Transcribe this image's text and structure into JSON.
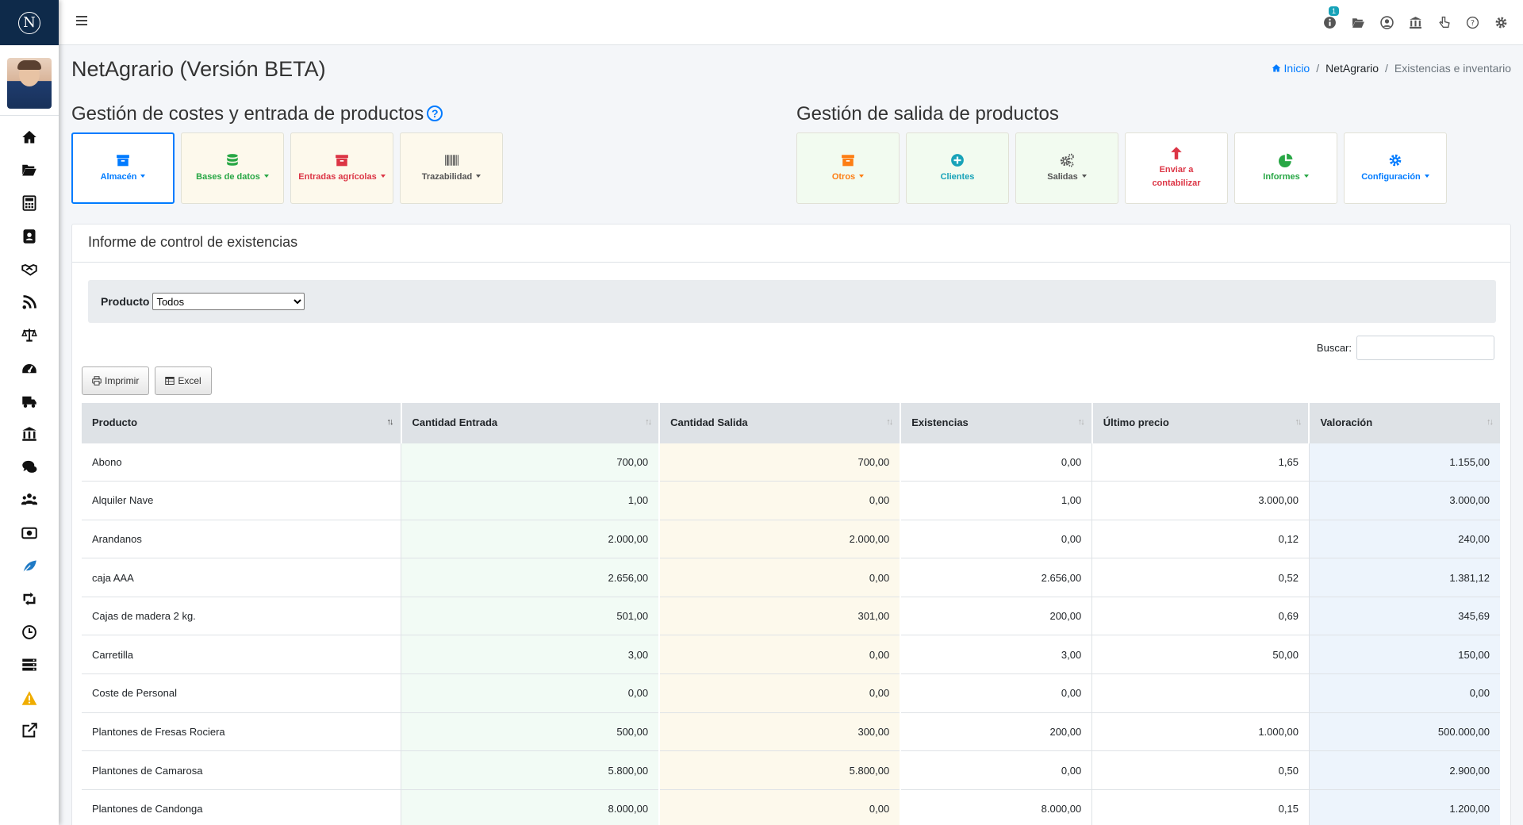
{
  "app": {
    "logo_letter": "N",
    "page_title": "NetAgrario (Versión BETA)",
    "notification_count": "1"
  },
  "breadcrumb": [
    "Inicio",
    "NetAgrario",
    "Existencias e inventario"
  ],
  "sections": {
    "entrada_title": "Gestión de costes y entrada de productos",
    "salida_title": "Gestión de salida de productos"
  },
  "entrada_tiles": [
    {
      "label": "Almacén",
      "icon": "archive-icon",
      "color": "#007bff"
    },
    {
      "label": "Bases de datos",
      "icon": "database-icon",
      "color": "#28a745"
    },
    {
      "label": "Entradas agrícolas",
      "icon": "archive-icon",
      "color": "#dc3545"
    },
    {
      "label": "Trazabilidad",
      "icon": "barcode-icon",
      "color": "#555555"
    }
  ],
  "salida_tiles": [
    {
      "label": "Otros",
      "icon": "archive-icon",
      "color": "#fd7e14"
    },
    {
      "label": "Clientes",
      "icon": "plus-circle-icon",
      "color": "#17a2b8"
    },
    {
      "label": "Salidas",
      "icon": "gears-icon",
      "color": "#555555"
    },
    {
      "label": "Enviar a contabilizar",
      "icon": "arrow-up-icon",
      "color": "#dc3545"
    },
    {
      "label": "Informes",
      "icon": "pie-chart-icon",
      "color": "#28a745"
    },
    {
      "label": "Configuración",
      "icon": "gear-icon",
      "color": "#007bff"
    }
  ],
  "report": {
    "title": "Informe de control de existencias",
    "filter_label": "Producto",
    "filter_value": "Todos",
    "search_label": "Buscar:",
    "search_value": "",
    "print_label": "Imprimir",
    "excel_label": "Excel"
  },
  "table": {
    "columns": [
      "Producto",
      "Cantidad Entrada",
      "Cantidad Salida",
      "Existencias",
      "Último precio",
      "Valoración"
    ],
    "rows": [
      [
        "Abono",
        "700,00",
        "700,00",
        "0,00",
        "1,65",
        "1.155,00"
      ],
      [
        "Alquiler Nave",
        "1,00",
        "0,00",
        "1,00",
        "3.000,00",
        "3.000,00"
      ],
      [
        "Arandanos",
        "2.000,00",
        "2.000,00",
        "0,00",
        "0,12",
        "240,00"
      ],
      [
        "caja AAA",
        "2.656,00",
        "0,00",
        "2.656,00",
        "0,52",
        "1.381,12"
      ],
      [
        "Cajas de madera 2 kg.",
        "501,00",
        "301,00",
        "200,00",
        "0,69",
        "345,69"
      ],
      [
        "Carretilla",
        "3,00",
        "0,00",
        "3,00",
        "50,00",
        "150,00"
      ],
      [
        "Coste de Personal",
        "0,00",
        "0,00",
        "0,00",
        "",
        "0,00"
      ],
      [
        "Plantones de Fresas Rociera",
        "500,00",
        "300,00",
        "200,00",
        "1.000,00",
        "500.000,00"
      ],
      [
        "Plantones de Camarosa",
        "5.800,00",
        "5.800,00",
        "0,00",
        "0,50",
        "2.900,00"
      ],
      [
        "Plantones de Candonga",
        "8.000,00",
        "0,00",
        "8.000,00",
        "0,15",
        "1.200,00"
      ]
    ]
  }
}
